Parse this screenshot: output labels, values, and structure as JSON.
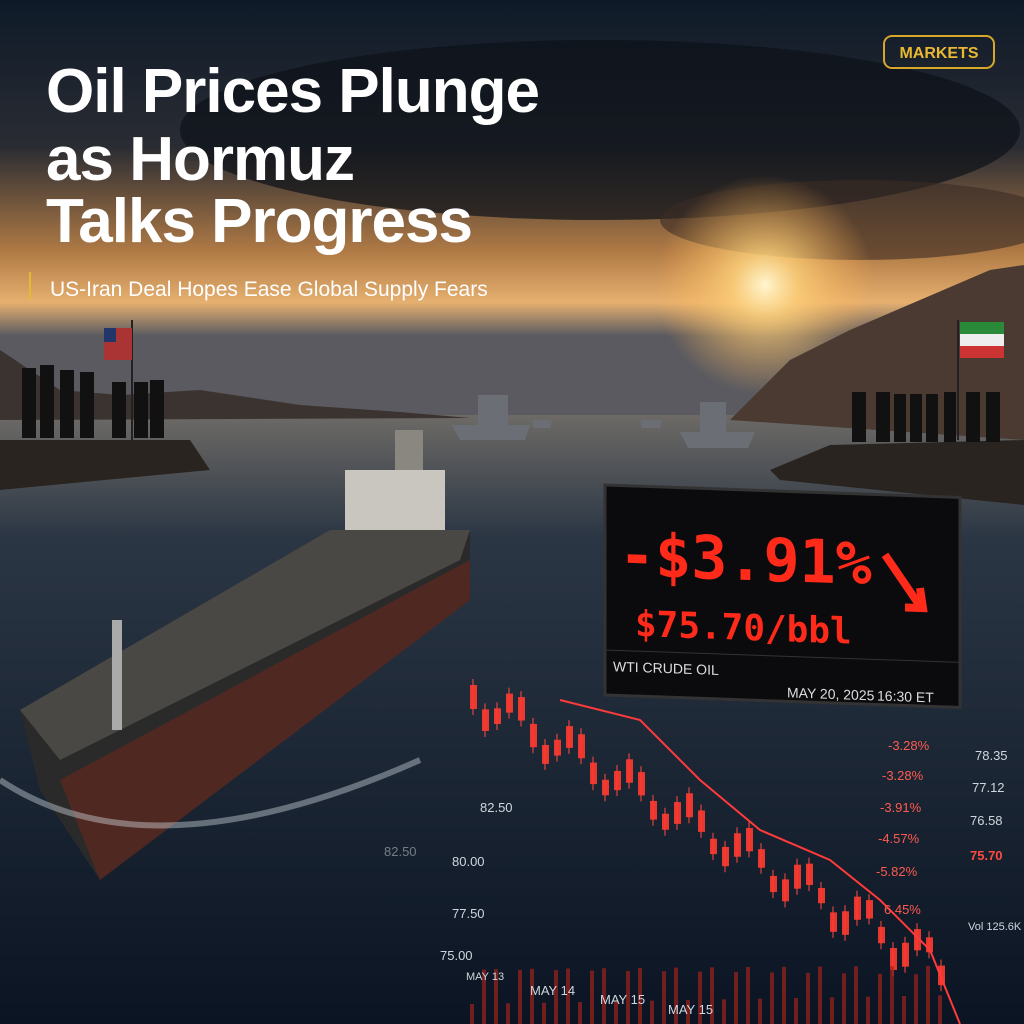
{
  "tag": "MARKETS",
  "headline": [
    "Oil Prices Plunge",
    "as Hormuz",
    "Talks Progress"
  ],
  "subheadline": "US-Iran Deal Hopes Ease Global Supply Fears",
  "ticker": {
    "change": "-$3.91%",
    "price": "$75.70/bbl",
    "instrument": "WTI CRUDE OIL",
    "date": "MAY 20, 2025",
    "time": "16:30 ET"
  },
  "overlay": {
    "price_axis": [
      "82.50",
      "82.50",
      "80.00",
      "77.50",
      "75.00"
    ],
    "changes": [
      "-3.28%",
      "-3.28%",
      "-3.91%",
      "-4.57%",
      "-5.82%",
      "6.45%"
    ],
    "prices": [
      "78.35",
      "77.12",
      "76.58",
      "75.70"
    ],
    "volume": "Vol 125.6K",
    "dates": [
      "MAY 13",
      "MAY 14",
      "MAY 15",
      "MAY 15"
    ]
  }
}
